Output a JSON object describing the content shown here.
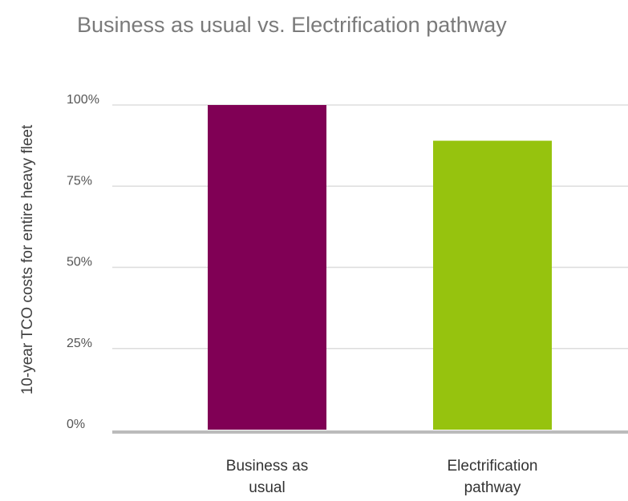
{
  "chart_data": {
    "type": "bar",
    "title": "Business as usual vs. Electrification pathway",
    "ylabel": "10-year TCO costs for entire heavy fleet",
    "xlabel": "",
    "categories": [
      [
        "Business as",
        "usual"
      ],
      [
        "Electrification",
        "pathway"
      ]
    ],
    "values": [
      100,
      89
    ],
    "colors": [
      "#800055",
      "#96c30e"
    ],
    "ylim": [
      0,
      100
    ],
    "yticks": [
      {
        "value": 0,
        "label": "0%"
      },
      {
        "value": 25,
        "label": "25%"
      },
      {
        "value": 50,
        "label": "50%"
      },
      {
        "value": 75,
        "label": "75%"
      },
      {
        "value": 100,
        "label": "100%"
      }
    ],
    "grid": true,
    "legend": "none"
  }
}
